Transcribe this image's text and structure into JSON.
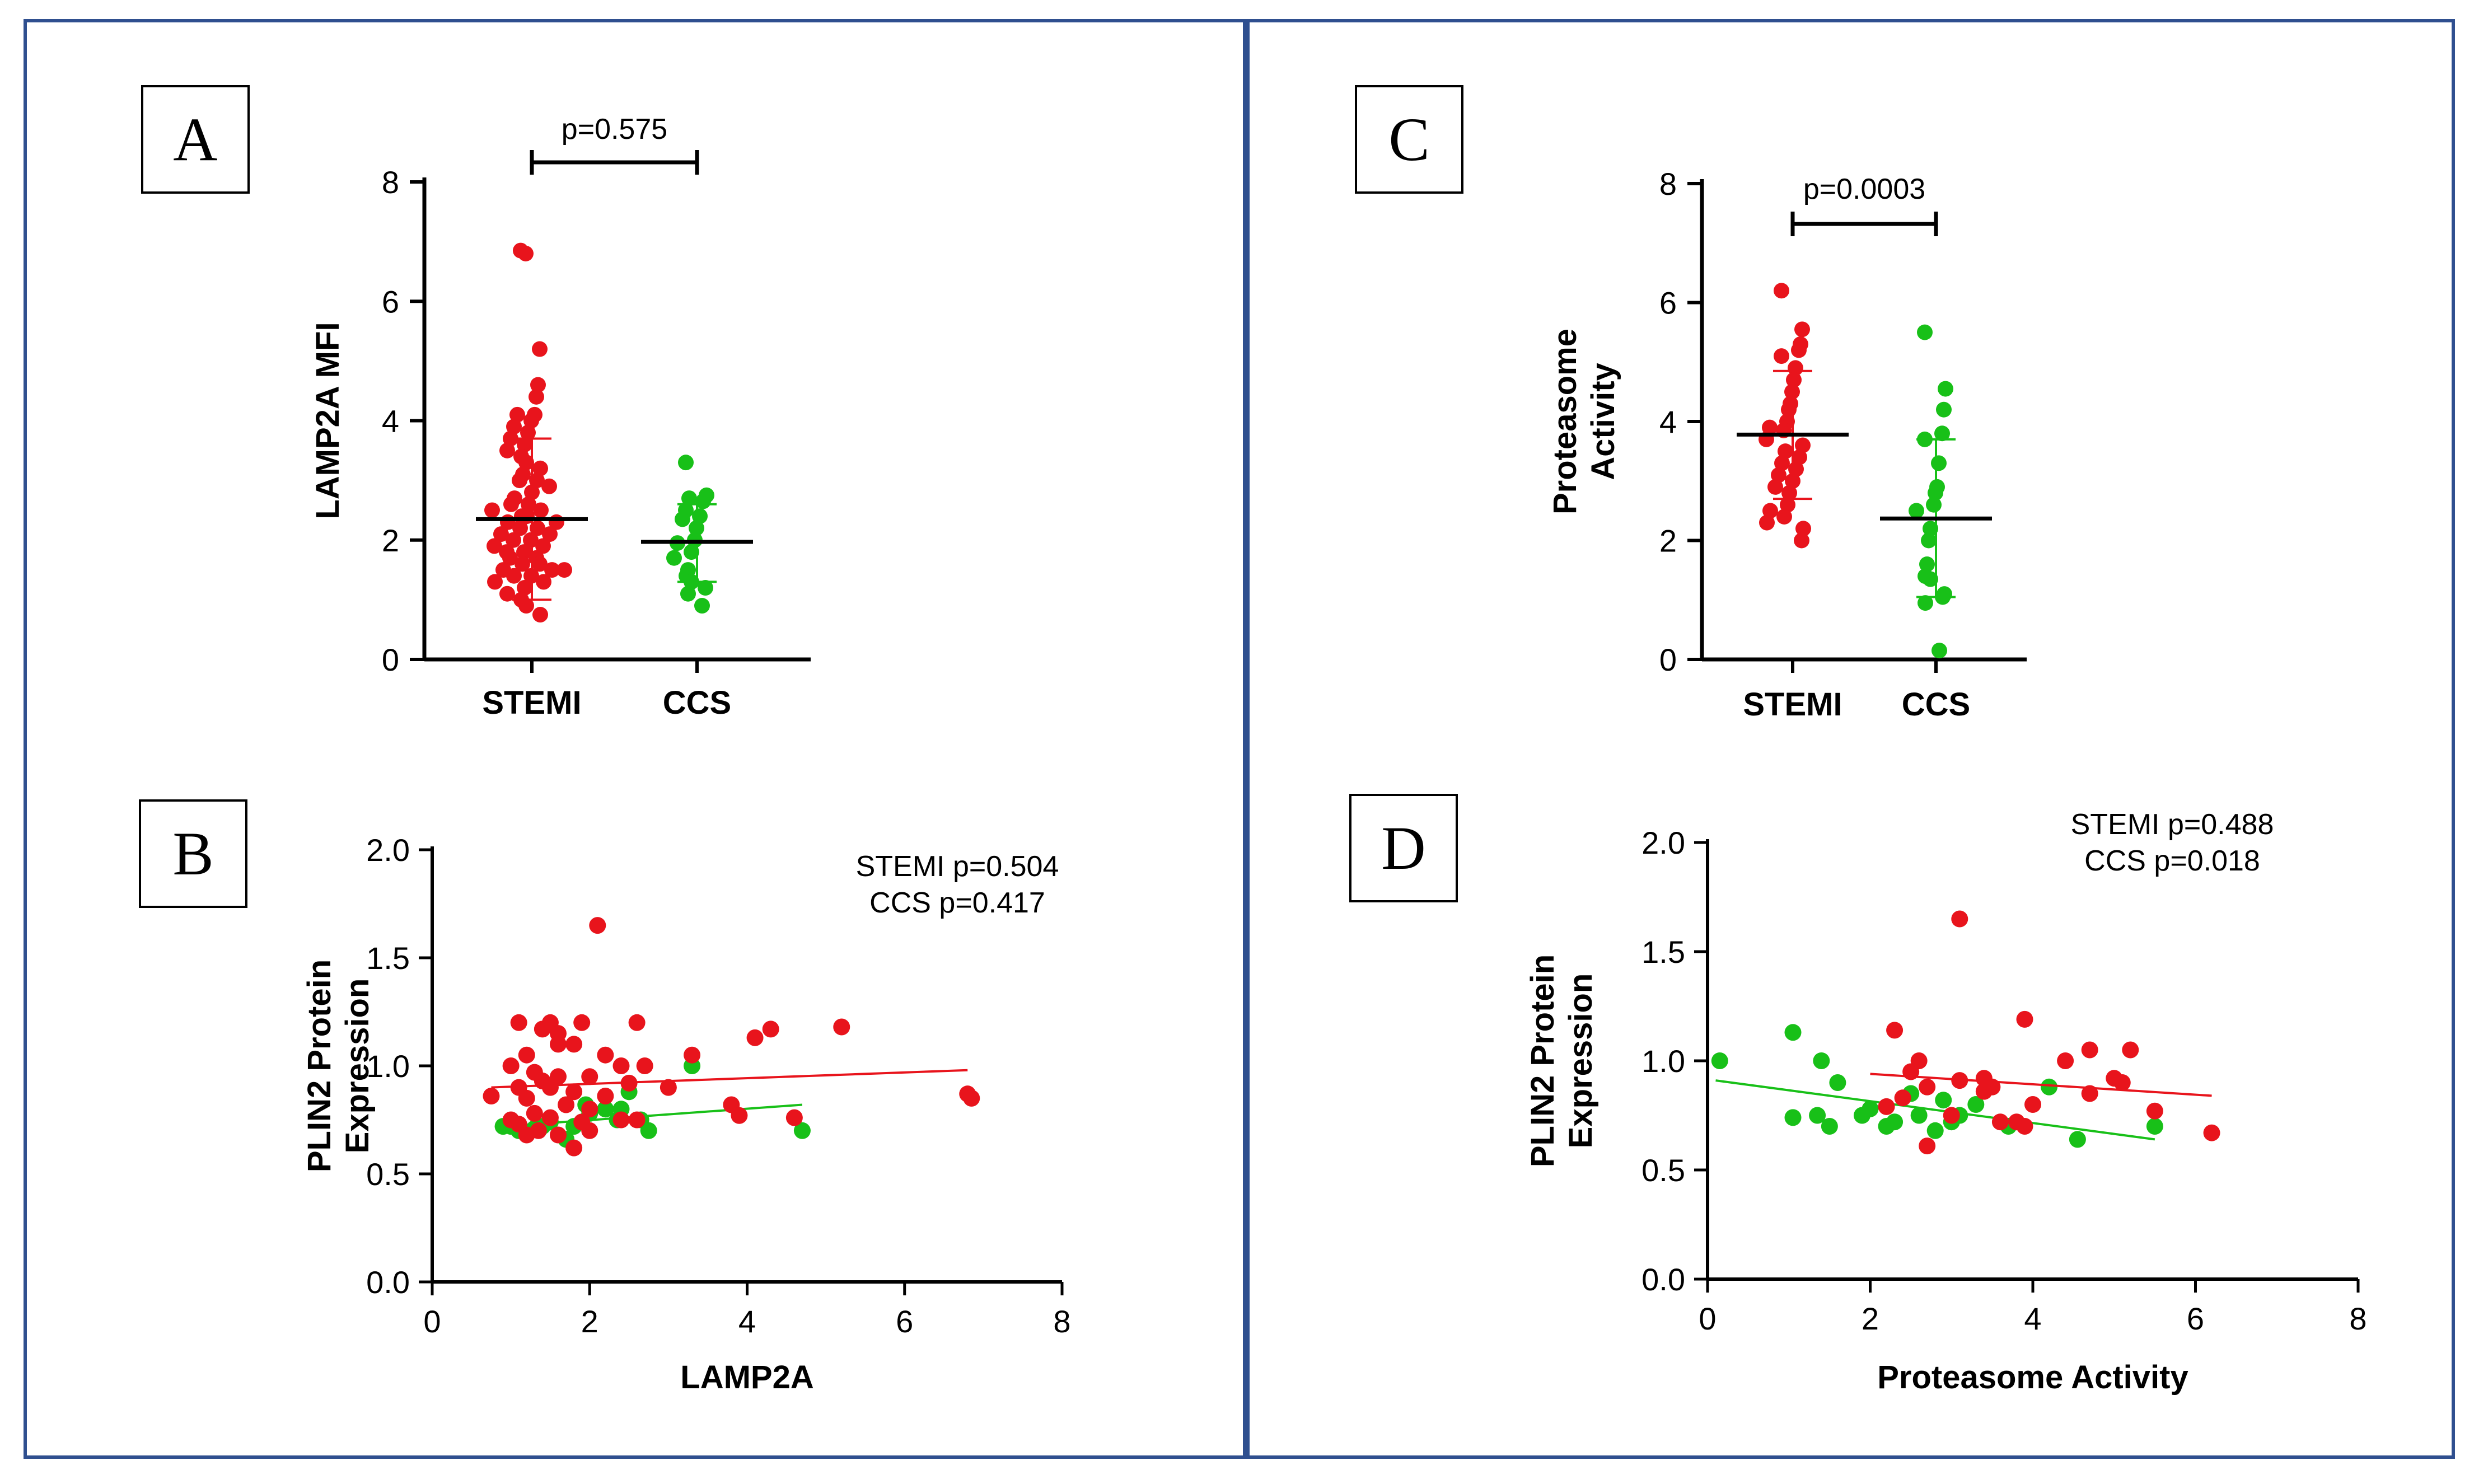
{
  "labels": {
    "A": "A",
    "B": "B",
    "C": "C",
    "D": "D"
  },
  "colors": {
    "stemi": "#e8141c",
    "ccs": "#18c018",
    "axis": "#000000",
    "frame": "#2f4f8f"
  },
  "chart_data": [
    {
      "id": "A",
      "type": "scatter",
      "title": "",
      "categories": [
        "STEMI",
        "CCS"
      ],
      "ylabel": "LAMP2A MFI",
      "ylim": [
        0,
        8
      ],
      "yticks": [
        0,
        2,
        4,
        6,
        8
      ],
      "pvalue": "p=0.575",
      "series": [
        {
          "name": "STEMI",
          "mean": 2.35,
          "sd_low": 1.0,
          "sd_high": 3.7,
          "values": [
            6.85,
            6.8,
            5.2,
            4.6,
            4.4,
            4.1,
            4.1,
            4.0,
            3.9,
            3.8,
            3.7,
            3.6,
            3.5,
            3.4,
            3.3,
            3.2,
            3.1,
            3.0,
            3.0,
            2.9,
            2.8,
            2.7,
            2.6,
            2.6,
            2.5,
            2.5,
            2.4,
            2.4,
            2.3,
            2.3,
            2.2,
            2.2,
            2.1,
            2.1,
            2.0,
            2.0,
            1.9,
            1.9,
            1.8,
            1.8,
            1.7,
            1.7,
            1.6,
            1.6,
            1.5,
            1.5,
            1.5,
            1.4,
            1.4,
            1.3,
            1.3,
            1.2,
            1.1,
            1.0,
            0.9,
            0.75
          ]
        },
        {
          "name": "CCS",
          "mean": 1.97,
          "sd_low": 1.3,
          "sd_high": 2.6,
          "values": [
            3.3,
            2.75,
            2.7,
            2.65,
            2.5,
            2.4,
            2.35,
            2.2,
            2.0,
            1.95,
            1.8,
            1.7,
            1.5,
            1.4,
            1.3,
            1.2,
            1.1,
            0.9
          ]
        }
      ]
    },
    {
      "id": "B",
      "type": "scatter",
      "xlabel": "LAMP2A",
      "ylabel": "PLIN2 Protein Expression",
      "xlim": [
        0,
        8
      ],
      "ylim": [
        0,
        2.0
      ],
      "xticks": [
        0,
        2,
        4,
        6,
        8
      ],
      "yticks": [
        0.0,
        0.5,
        1.0,
        1.5,
        2.0
      ],
      "annotations": [
        "STEMI p=0.504",
        "CCS p=0.417"
      ],
      "series": [
        {
          "name": "STEMI",
          "fit": [
            [
              0.75,
              0.9
            ],
            [
              6.8,
              0.98
            ]
          ],
          "points": [
            [
              2.1,
              1.65
            ],
            [
              1.1,
              1.2
            ],
            [
              1.5,
              1.2
            ],
            [
              1.9,
              1.2
            ],
            [
              2.6,
              1.2
            ],
            [
              1.4,
              1.17
            ],
            [
              1.6,
              1.15
            ],
            [
              4.3,
              1.17
            ],
            [
              4.1,
              1.13
            ],
            [
              5.2,
              1.18
            ],
            [
              3.3,
              1.05
            ],
            [
              2.2,
              1.05
            ],
            [
              1.2,
              1.05
            ],
            [
              1.6,
              1.1
            ],
            [
              1.8,
              1.1
            ],
            [
              2.4,
              1.0
            ],
            [
              2.7,
              1.0
            ],
            [
              1.0,
              1.0
            ],
            [
              1.3,
              0.97
            ],
            [
              1.6,
              0.95
            ],
            [
              2.0,
              0.95
            ],
            [
              1.4,
              0.93
            ],
            [
              2.5,
              0.92
            ],
            [
              1.1,
              0.9
            ],
            [
              1.5,
              0.9
            ],
            [
              1.8,
              0.88
            ],
            [
              3.0,
              0.9
            ],
            [
              2.2,
              0.86
            ],
            [
              0.75,
              0.86
            ],
            [
              1.2,
              0.85
            ],
            [
              6.8,
              0.87
            ],
            [
              6.85,
              0.85
            ],
            [
              1.7,
              0.82
            ],
            [
              3.8,
              0.82
            ],
            [
              2.0,
              0.8
            ],
            [
              1.3,
              0.78
            ],
            [
              2.4,
              0.75
            ],
            [
              2.6,
              0.75
            ],
            [
              3.9,
              0.77
            ],
            [
              4.6,
              0.76
            ],
            [
              1.5,
              0.76
            ],
            [
              1.9,
              0.74
            ],
            [
              1.1,
              0.73
            ],
            [
              1.35,
              0.7
            ],
            [
              2.0,
              0.7
            ],
            [
              1.6,
              0.68
            ],
            [
              1.8,
              0.62
            ],
            [
              1.2,
              0.68
            ],
            [
              1.0,
              0.75
            ]
          ]
        },
        {
          "name": "CCS",
          "fit": [
            [
              0.9,
              0.72
            ],
            [
              4.7,
              0.82
            ]
          ],
          "points": [
            [
              3.3,
              1.0
            ],
            [
              2.5,
              0.88
            ],
            [
              2.4,
              0.8
            ],
            [
              2.2,
              0.8
            ],
            [
              2.0,
              0.78
            ],
            [
              1.95,
              0.82
            ],
            [
              1.8,
              0.72
            ],
            [
              2.75,
              0.7
            ],
            [
              2.35,
              0.75
            ],
            [
              1.4,
              0.72
            ],
            [
              1.3,
              0.71
            ],
            [
              1.1,
              0.7
            ],
            [
              1.0,
              0.72
            ],
            [
              0.9,
              0.72
            ],
            [
              1.5,
              0.74
            ],
            [
              1.7,
              0.66
            ],
            [
              4.7,
              0.7
            ],
            [
              2.65,
              0.75
            ]
          ]
        }
      ]
    },
    {
      "id": "C",
      "type": "scatter",
      "categories": [
        "STEMI",
        "CCS"
      ],
      "ylabel": "Proteasome Activity",
      "ylabel_lines": [
        "Proteasome",
        "Activity"
      ],
      "ylim": [
        0,
        8
      ],
      "yticks": [
        0,
        2,
        4,
        6,
        8
      ],
      "pvalue": "p=0.0003",
      "series": [
        {
          "name": "STEMI",
          "mean": 3.78,
          "sd_low": 2.7,
          "sd_high": 4.85,
          "values": [
            6.2,
            5.55,
            5.3,
            5.2,
            5.1,
            4.9,
            4.7,
            4.5,
            4.3,
            4.2,
            4.0,
            3.9,
            3.85,
            3.7,
            3.6,
            3.5,
            3.4,
            3.3,
            3.2,
            3.1,
            3.0,
            2.9,
            2.8,
            2.6,
            2.5,
            2.4,
            2.3,
            2.2,
            2.0
          ]
        },
        {
          "name": "CCS",
          "mean": 2.37,
          "sd_low": 1.05,
          "sd_high": 3.7,
          "values": [
            5.5,
            4.55,
            4.2,
            3.8,
            3.7,
            3.3,
            2.9,
            2.8,
            2.6,
            2.5,
            2.2,
            2.0,
            1.6,
            1.4,
            1.35,
            1.1,
            1.05,
            0.95,
            0.15
          ]
        }
      ]
    },
    {
      "id": "D",
      "type": "scatter",
      "xlabel": "Proteasome Activity",
      "ylabel": "PLIN2 Protein Expression",
      "xlim": [
        0,
        8
      ],
      "ylim": [
        0,
        2.0
      ],
      "xticks": [
        0,
        2,
        4,
        6,
        8
      ],
      "yticks": [
        0.0,
        0.5,
        1.0,
        1.5,
        2.0
      ],
      "annotations": [
        "STEMI p=0.488",
        "CCS p=0.018"
      ],
      "series": [
        {
          "name": "STEMI",
          "fit": [
            [
              2.0,
              0.94
            ],
            [
              6.2,
              0.84
            ]
          ],
          "points": [
            [
              3.1,
              1.65
            ],
            [
              3.9,
              1.19
            ],
            [
              2.3,
              1.14
            ],
            [
              4.7,
              1.05
            ],
            [
              5.2,
              1.05
            ],
            [
              2.6,
              1.0
            ],
            [
              4.4,
              1.0
            ],
            [
              2.5,
              0.95
            ],
            [
              3.4,
              0.92
            ],
            [
              5.0,
              0.92
            ],
            [
              5.1,
              0.9
            ],
            [
              3.1,
              0.91
            ],
            [
              3.5,
              0.88
            ],
            [
              3.4,
              0.86
            ],
            [
              2.7,
              0.88
            ],
            [
              4.7,
              0.85
            ],
            [
              2.4,
              0.83
            ],
            [
              4.0,
              0.8
            ],
            [
              2.2,
              0.79
            ],
            [
              3.0,
              0.75
            ],
            [
              5.5,
              0.77
            ],
            [
              3.6,
              0.72
            ],
            [
              3.9,
              0.7
            ],
            [
              3.8,
              0.72
            ],
            [
              6.2,
              0.67
            ],
            [
              2.7,
              0.61
            ]
          ]
        },
        {
          "name": "CCS",
          "fit": [
            [
              0.1,
              0.91
            ],
            [
              5.5,
              0.64
            ]
          ],
          "points": [
            [
              0.15,
              1.0
            ],
            [
              1.05,
              1.13
            ],
            [
              1.4,
              1.0
            ],
            [
              1.6,
              0.9
            ],
            [
              4.2,
              0.88
            ],
            [
              2.5,
              0.85
            ],
            [
              2.9,
              0.82
            ],
            [
              3.3,
              0.8
            ],
            [
              2.6,
              0.75
            ],
            [
              1.05,
              0.74
            ],
            [
              1.35,
              0.75
            ],
            [
              1.9,
              0.75
            ],
            [
              3.0,
              0.72
            ],
            [
              2.3,
              0.72
            ],
            [
              2.2,
              0.7
            ],
            [
              2.8,
              0.68
            ],
            [
              1.5,
              0.7
            ],
            [
              3.7,
              0.7
            ],
            [
              4.55,
              0.64
            ],
            [
              5.5,
              0.7
            ],
            [
              2.0,
              0.78
            ],
            [
              3.1,
              0.75
            ]
          ]
        }
      ]
    }
  ]
}
